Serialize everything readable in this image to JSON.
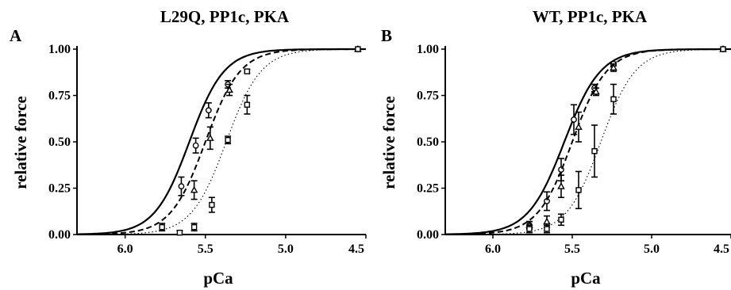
{
  "chart_data": [
    {
      "type": "line",
      "panel_label": "A",
      "title": "L29Q, PP1c, PKA",
      "xlabel": "pCa",
      "ylabel": "relative force",
      "x_reversed": true,
      "xlim": [
        6.3,
        4.5
      ],
      "ylim": [
        0,
        1
      ],
      "xticks": [
        "6.0",
        "5.5",
        "5.0",
        "4.5"
      ],
      "xtick_values": [
        6.0,
        5.5,
        5.0,
        4.5
      ],
      "yticks": [
        "0.00",
        "0.25",
        "0.50",
        "0.75",
        "1.00"
      ],
      "ytick_values": [
        0,
        0.25,
        0.5,
        0.75,
        1.0
      ],
      "grid": false,
      "series": [
        {
          "style": "solid",
          "marker": "circle",
          "curve": {
            "pCa50": 5.6,
            "hill": 4.0
          },
          "points": [
            {
              "x": 5.65,
              "y": 0.26,
              "err": 0.05
            },
            {
              "x": 5.56,
              "y": 0.48,
              "err": 0.04
            },
            {
              "x": 5.48,
              "y": 0.67,
              "err": 0.04
            },
            {
              "x": 5.36,
              "y": 0.81,
              "err": 0.02
            },
            {
              "x": 4.55,
              "y": 1.0,
              "err": 0
            }
          ]
        },
        {
          "style": "dashed",
          "marker": "triangle",
          "curve": {
            "pCa50": 5.5,
            "hill": 4.0
          },
          "points": [
            {
              "x": 5.57,
              "y": 0.24,
              "err": 0.05
            },
            {
              "x": 5.47,
              "y": 0.52,
              "err": 0.06
            },
            {
              "x": 5.35,
              "y": 0.78,
              "err": 0.03
            },
            {
              "x": 4.55,
              "y": 1.0,
              "err": 0
            }
          ]
        },
        {
          "style": "dotted",
          "marker": "square",
          "curve": {
            "pCa50": 5.37,
            "hill": 4.0
          },
          "points": [
            {
              "x": 5.77,
              "y": 0.04,
              "err": 0.02
            },
            {
              "x": 5.66,
              "y": 0.01,
              "err": 0.01
            },
            {
              "x": 5.57,
              "y": 0.04,
              "err": 0.02
            },
            {
              "x": 5.46,
              "y": 0.16,
              "err": 0.04
            },
            {
              "x": 5.36,
              "y": 0.51,
              "err": 0.02
            },
            {
              "x": 5.24,
              "y": 0.7,
              "err": 0.05
            },
            {
              "x": 5.24,
              "y": 0.88,
              "err": 0.01
            },
            {
              "x": 4.55,
              "y": 1.0,
              "err": 0
            }
          ]
        }
      ]
    },
    {
      "type": "line",
      "panel_label": "B",
      "title": "WT, PP1c, PKA",
      "xlabel": "pCa",
      "ylabel": "relative force",
      "x_reversed": true,
      "xlim": [
        6.3,
        4.5
      ],
      "ylim": [
        0,
        1
      ],
      "xticks": [
        "6.0",
        "5.5",
        "5.0",
        "4.5"
      ],
      "xtick_values": [
        6.0,
        5.5,
        5.0,
        4.5
      ],
      "yticks": [
        "0.00",
        "0.25",
        "0.50",
        "0.75",
        "1.00"
      ],
      "ytick_values": [
        0,
        0.25,
        0.5,
        0.75,
        1.0
      ],
      "grid": false,
      "series": [
        {
          "style": "solid",
          "marker": "circle",
          "curve": {
            "pCa50": 5.55,
            "hill": 3.8
          },
          "points": [
            {
              "x": 5.77,
              "y": 0.05,
              "err": 0.02
            },
            {
              "x": 5.66,
              "y": 0.18,
              "err": 0.05
            },
            {
              "x": 5.57,
              "y": 0.35,
              "err": 0.06
            },
            {
              "x": 5.49,
              "y": 0.62,
              "err": 0.08
            },
            {
              "x": 5.36,
              "y": 0.79,
              "err": 0.02
            },
            {
              "x": 5.24,
              "y": 0.92,
              "err": 0.01
            },
            {
              "x": 4.55,
              "y": 1.0,
              "err": 0
            }
          ]
        },
        {
          "style": "dashed",
          "marker": "triangle",
          "curve": {
            "pCa50": 5.5,
            "hill": 4.0
          },
          "points": [
            {
              "x": 5.77,
              "y": 0.05,
              "err": 0.02
            },
            {
              "x": 5.66,
              "y": 0.07,
              "err": 0.03
            },
            {
              "x": 5.57,
              "y": 0.26,
              "err": 0.06
            },
            {
              "x": 5.46,
              "y": 0.58,
              "err": 0.08
            },
            {
              "x": 5.35,
              "y": 0.77,
              "err": 0.02
            },
            {
              "x": 5.24,
              "y": 0.9,
              "err": 0.02
            },
            {
              "x": 4.55,
              "y": 1.0,
              "err": 0
            }
          ]
        },
        {
          "style": "dotted",
          "marker": "square",
          "curve": {
            "pCa50": 5.32,
            "hill": 4.0
          },
          "points": [
            {
              "x": 5.77,
              "y": 0.03,
              "err": 0.02
            },
            {
              "x": 5.66,
              "y": 0.03,
              "err": 0.02
            },
            {
              "x": 5.57,
              "y": 0.08,
              "err": 0.03
            },
            {
              "x": 5.46,
              "y": 0.24,
              "err": 0.1
            },
            {
              "x": 5.36,
              "y": 0.45,
              "err": 0.14
            },
            {
              "x": 5.24,
              "y": 0.73,
              "err": 0.08
            },
            {
              "x": 4.55,
              "y": 1.0,
              "err": 0
            }
          ]
        }
      ]
    }
  ]
}
